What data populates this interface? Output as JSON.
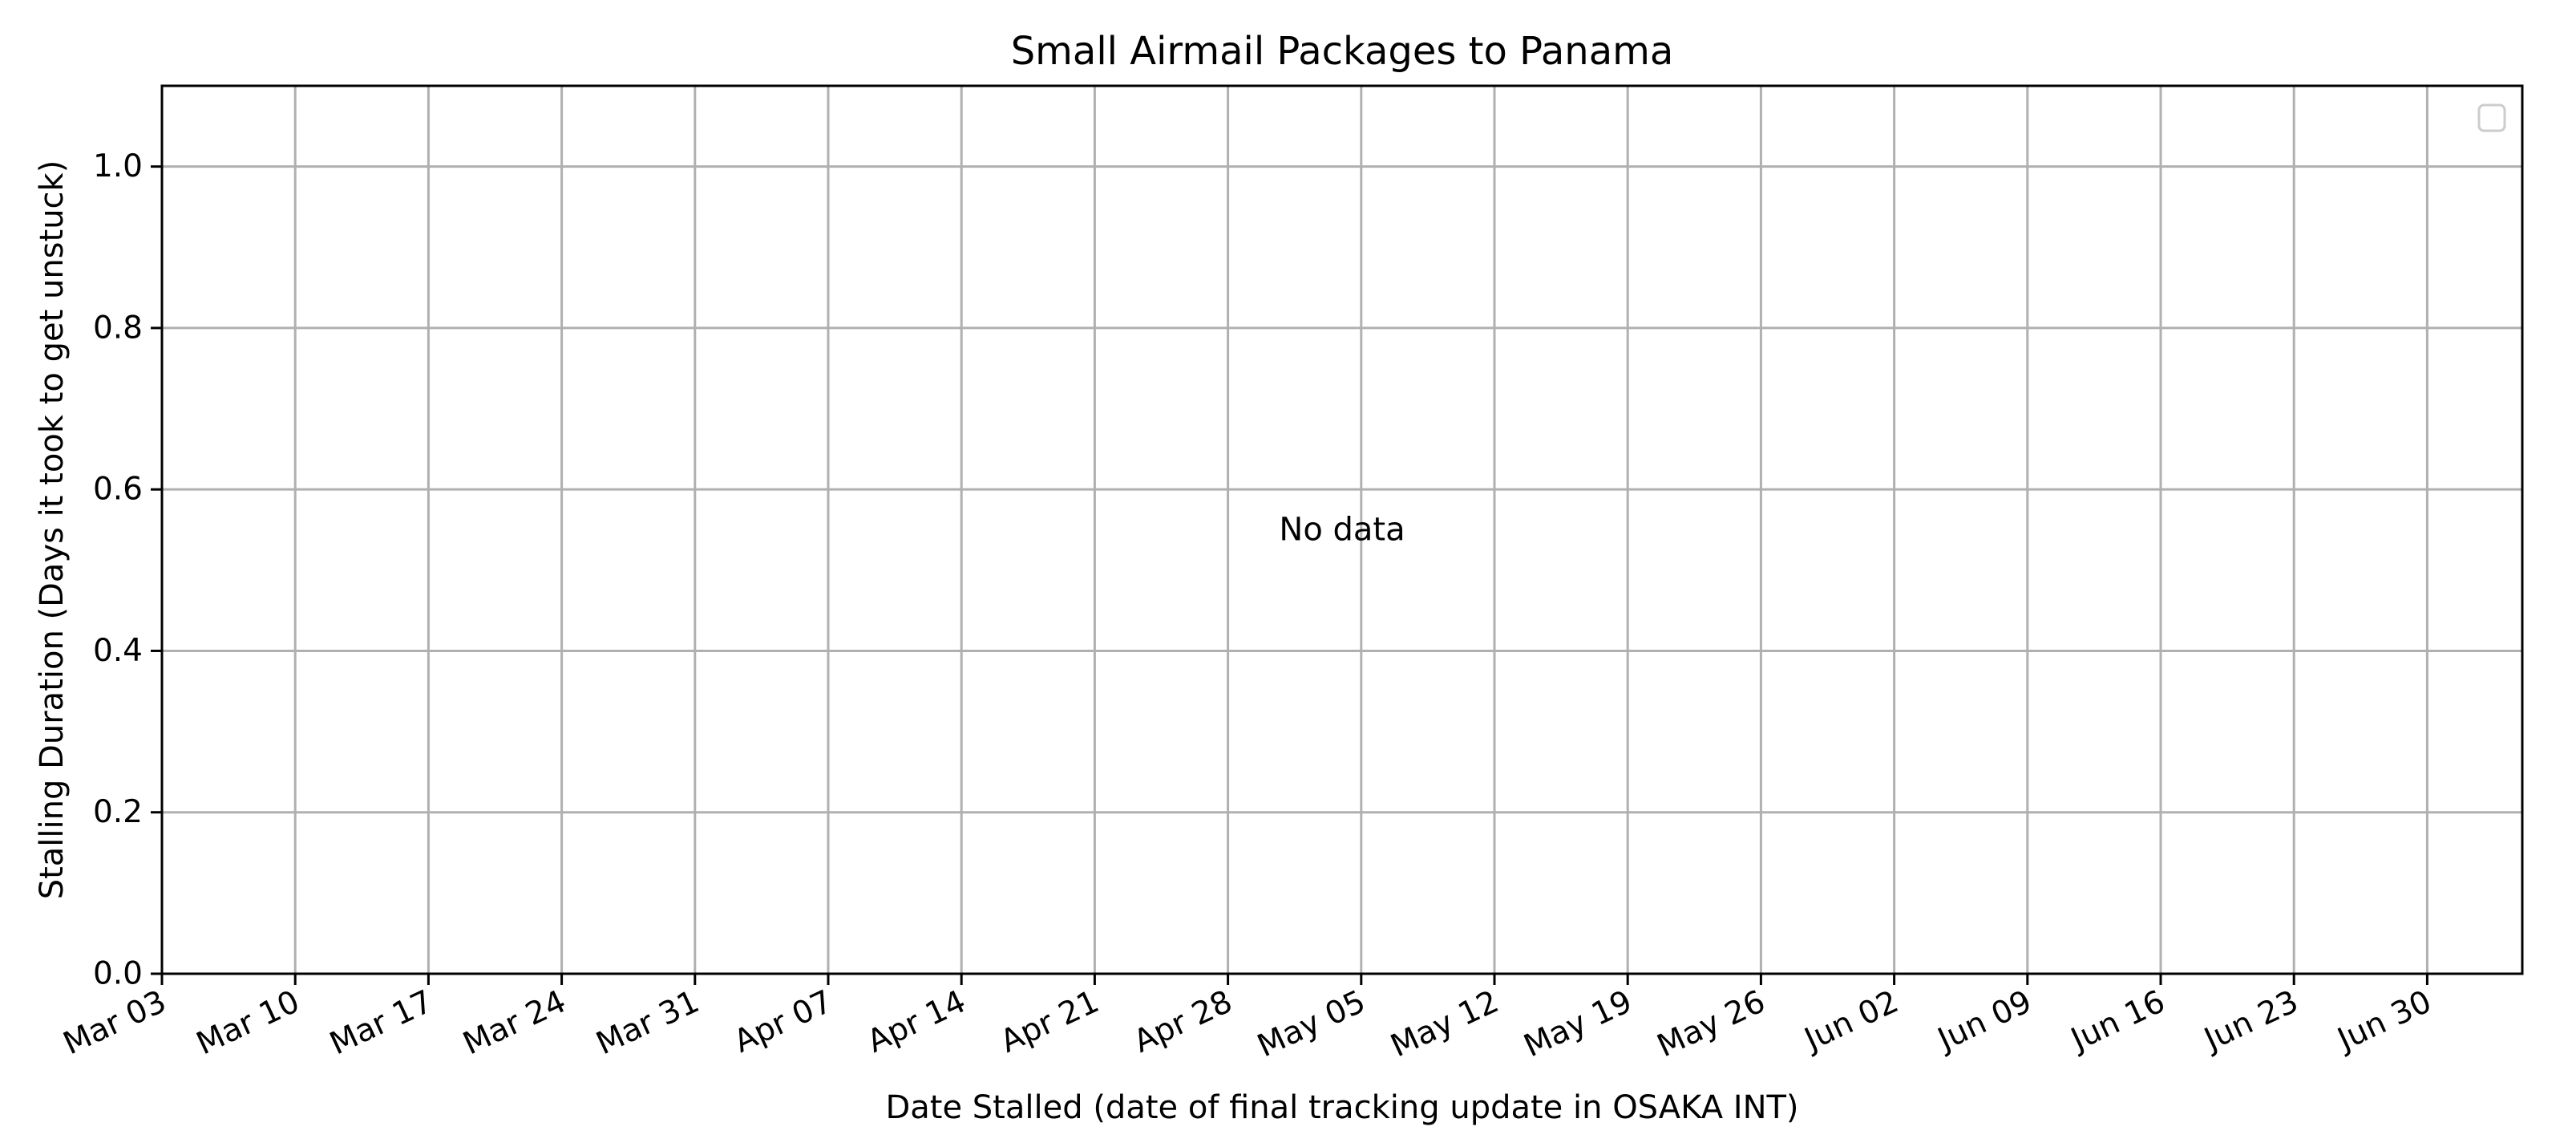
{
  "chart_data": {
    "type": "scatter",
    "title": "Small Airmail Packages to Panama",
    "xlabel": "Date Stalled (date of final tracking update in OSAKA INT)",
    "ylabel": "Stalling Duration (Days it took to get unstuck)",
    "x_ticks": [
      "Mar 03",
      "Mar 10",
      "Mar 17",
      "Mar 24",
      "Mar 31",
      "Apr 07",
      "Apr 14",
      "Apr 21",
      "Apr 28",
      "May 05",
      "May 12",
      "May 19",
      "May 26",
      "Jun 02",
      "Jun 09",
      "Jun 16",
      "Jun 23",
      "Jun 30"
    ],
    "y_ticks": [
      "0.0",
      "0.2",
      "0.4",
      "0.6",
      "0.8",
      "1.0"
    ],
    "ylim": [
      0,
      1.1
    ],
    "grid": true,
    "legend": "top-right",
    "annotation": "No data",
    "series": []
  }
}
